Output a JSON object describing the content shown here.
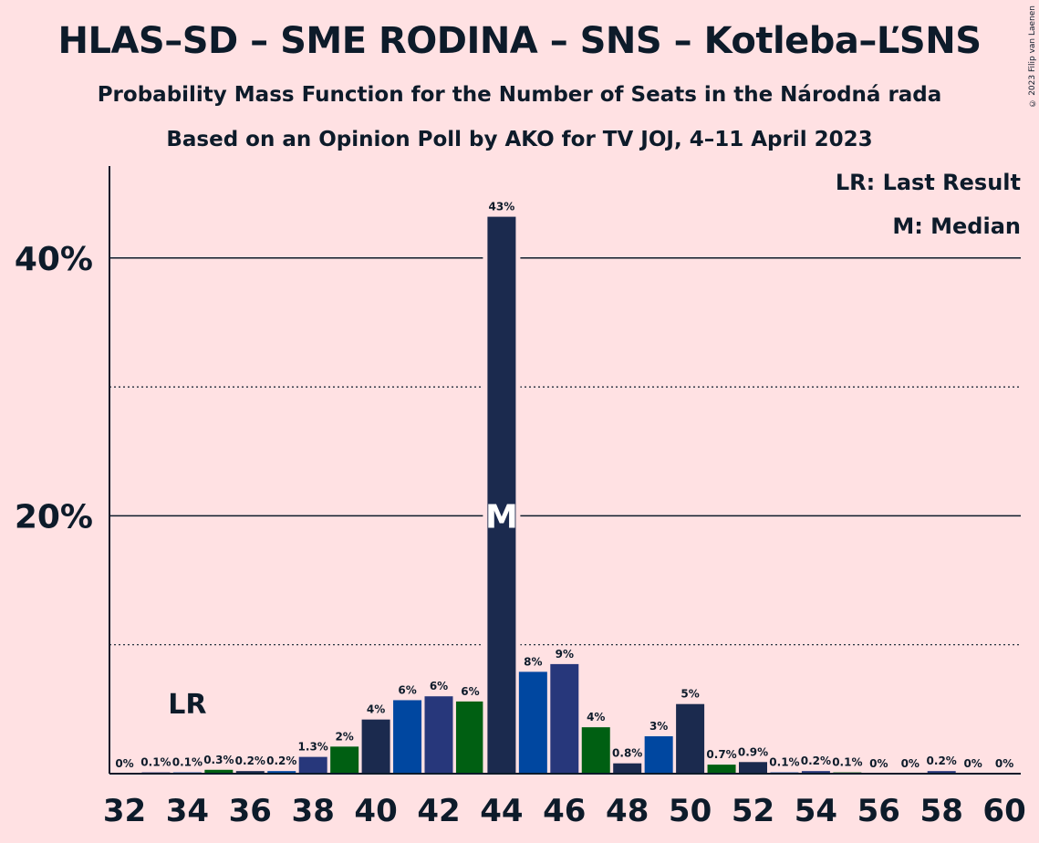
{
  "chart_data": {
    "type": "bar",
    "title": "HLAS–SD – SME RODINA – SNS – Kotleba–ĽSNS",
    "subtitle": "Probability Mass Function for the Number of Seats in the Národná rada",
    "subtitle2": "Based on an Opinion Poll by AKO for TV JOJ, 4–11 April 2023",
    "copyright": "© 2023 Filip van Laenen",
    "legend": {
      "last_result": "LR: Last Result",
      "median": "M: Median"
    },
    "ylim": [
      0,
      47
    ],
    "yticks": [
      {
        "value": 20,
        "label": "20%"
      },
      {
        "value": 40,
        "label": "40%"
      }
    ],
    "dotted_grid": [
      10,
      30
    ],
    "categories": [
      32,
      33,
      34,
      35,
      36,
      37,
      38,
      39,
      40,
      41,
      42,
      43,
      44,
      45,
      46,
      47,
      48,
      49,
      50,
      51,
      52,
      53,
      54,
      55,
      56,
      57,
      58,
      59,
      60
    ],
    "x_tick_labels": [
      "32",
      "34",
      "36",
      "38",
      "40",
      "42",
      "44",
      "46",
      "48",
      "50",
      "52",
      "54",
      "56",
      "58",
      "60"
    ],
    "values": [
      0,
      0.1,
      0.1,
      0.3,
      0.2,
      0.2,
      1.3,
      2,
      4,
      6,
      6,
      6,
      43,
      8,
      9,
      4,
      0.8,
      3,
      5,
      0.7,
      0.9,
      0.1,
      0.2,
      0.1,
      0,
      0,
      0.2,
      0,
      0
    ],
    "heights": [
      0,
      0.1,
      0.1,
      0.3,
      0.2,
      0.2,
      1.3,
      2.1,
      4.2,
      5.7,
      6.0,
      5.6,
      43.2,
      7.9,
      8.5,
      3.6,
      0.8,
      2.9,
      5.4,
      0.7,
      0.9,
      0.1,
      0.2,
      0.1,
      0,
      0,
      0.2,
      0,
      0
    ],
    "labels": [
      "0%",
      "0.1%",
      "0.1%",
      "0.3%",
      "0.2%",
      "0.2%",
      "1.3%",
      "2%",
      "4%",
      "6%",
      "6%",
      "6%",
      "43%",
      "8%",
      "9%",
      "4%",
      "0.8%",
      "3%",
      "5%",
      "0.7%",
      "0.9%",
      "0.1%",
      "0.2%",
      "0.1%",
      "0%",
      "0%",
      "0.2%",
      "0%",
      "0%"
    ],
    "last_result_seat": 34,
    "last_result_label": "LR",
    "median_seat": 44,
    "median_label": "M",
    "colors": {
      "background": "#FFE1E3",
      "dark_navy": "#1B2A4E",
      "navy": "#27377B",
      "blue": "#0047A0",
      "green": "#005F12",
      "text": "#0D1B2A"
    },
    "bar_colors": [
      "#1B2A4E",
      "#27377B",
      "#0047A0",
      "#005F12",
      "#1B2A4E",
      "#0047A0",
      "#27377B",
      "#005F12",
      "#1B2A4E",
      "#0047A0",
      "#27377B",
      "#005F12",
      "#1B2A4E",
      "#0047A0",
      "#27377B",
      "#005F12",
      "#1B2A4E",
      "#0047A0",
      "#1B2A4E",
      "#005F12",
      "#1B2A4E",
      "#0047A0",
      "#27377B",
      "#005F12",
      "#1B2A4E",
      "#0047A0",
      "#27377B",
      "#005F12",
      "#1B2A4E"
    ]
  }
}
